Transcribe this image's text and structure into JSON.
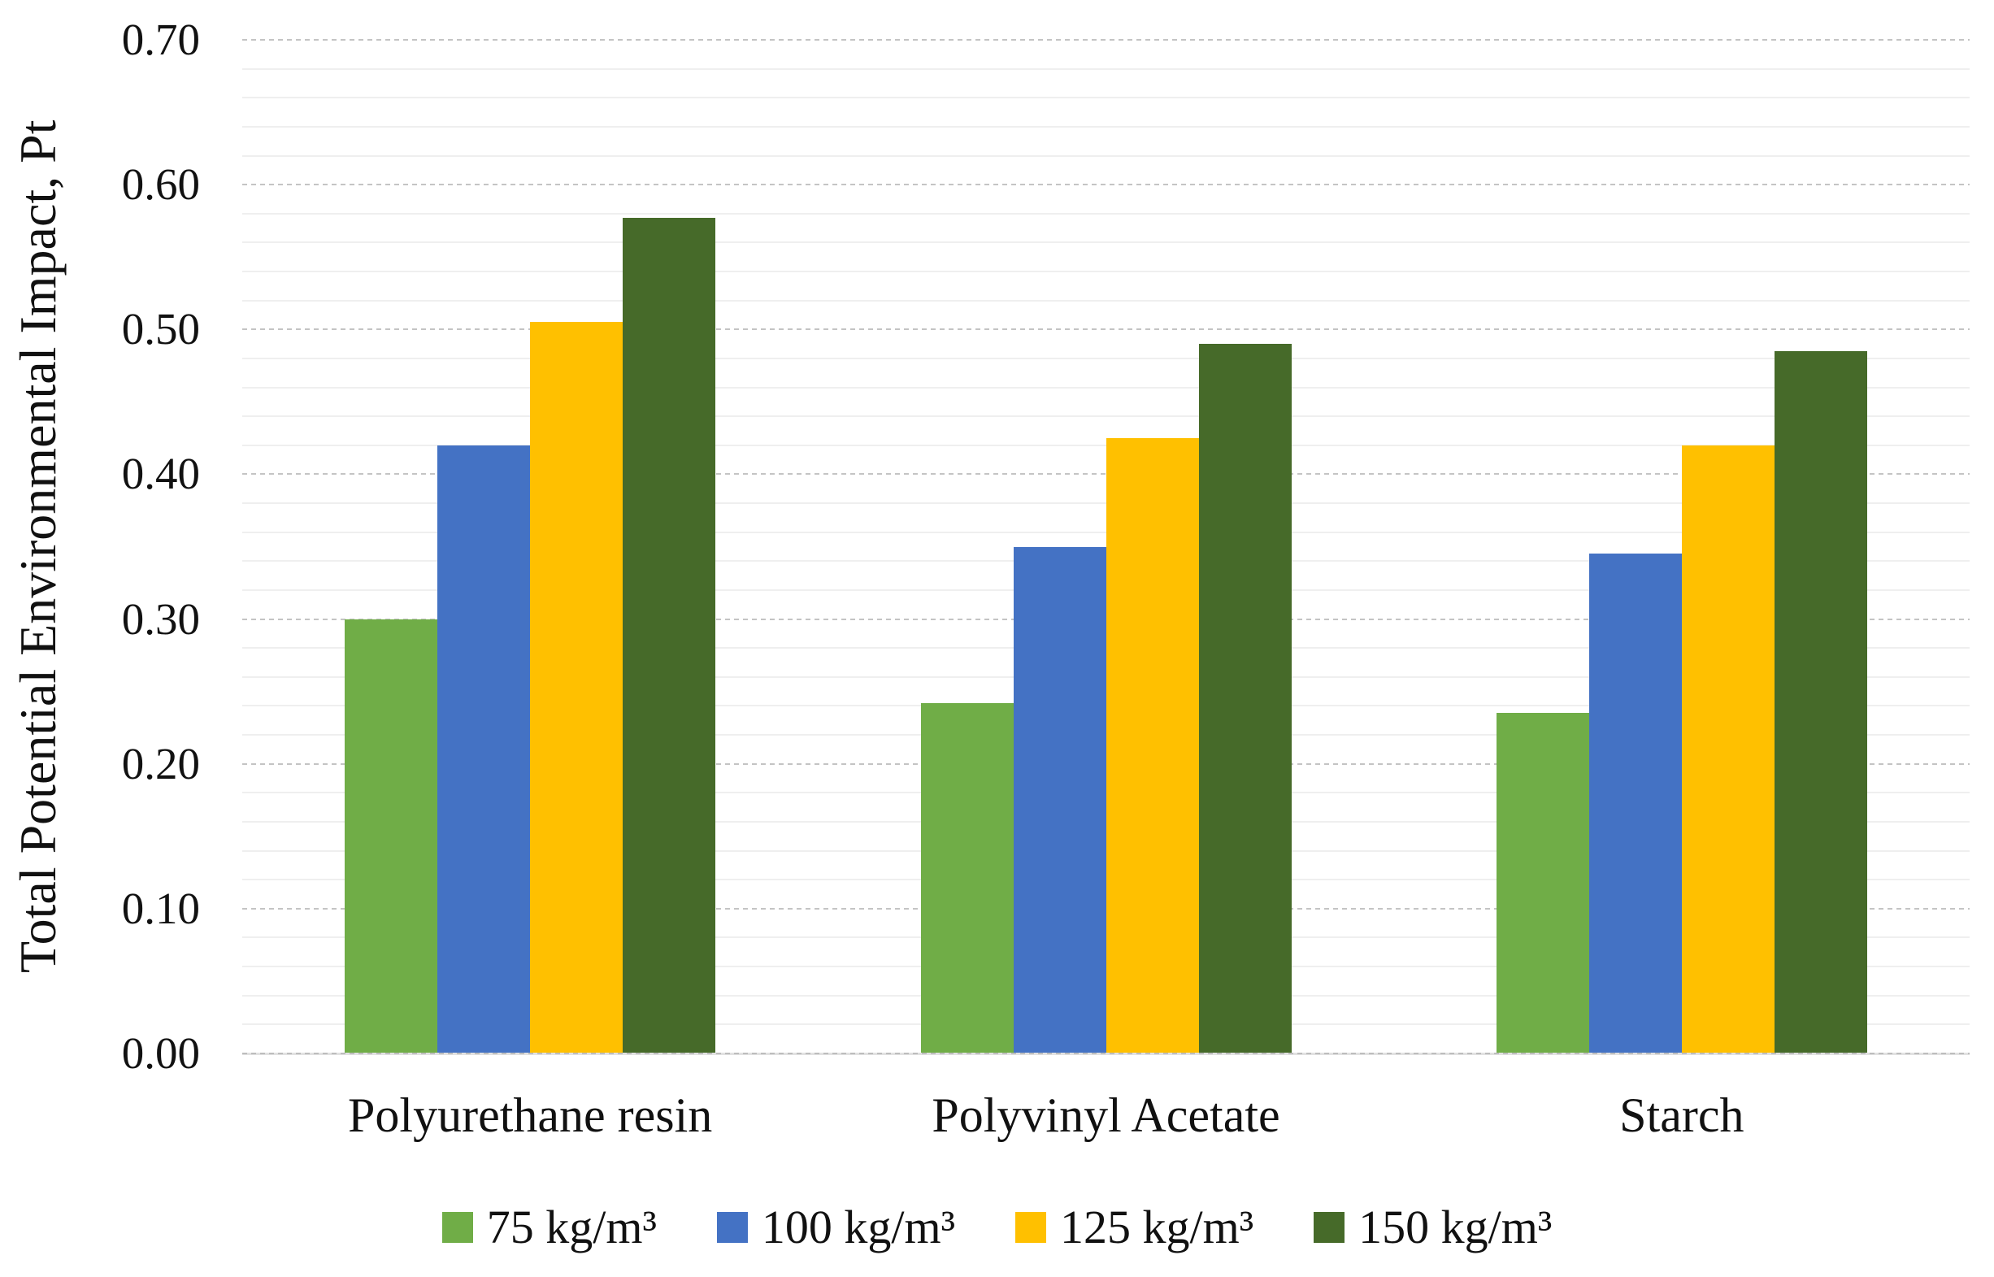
{
  "chart_data": {
    "type": "bar",
    "title": "",
    "xlabel": "",
    "ylabel": "Total Potential Environmental Impact, Pt",
    "categories": [
      "Polyurethane resin",
      "Polyvinyl Acetate",
      "Starch"
    ],
    "series": [
      {
        "name": "75 kg/m³",
        "color": "#70AD47",
        "values": [
          0.3,
          0.242,
          0.235
        ]
      },
      {
        "name": "100 kg/m³",
        "color": "#4472C4",
        "values": [
          0.42,
          0.35,
          0.345
        ]
      },
      {
        "name": "125 kg/m³",
        "color": "#FFC000",
        "values": [
          0.505,
          0.425,
          0.42
        ]
      },
      {
        "name": "150 kg/m³",
        "color": "#466A29",
        "values": [
          0.577,
          0.49,
          0.485
        ]
      }
    ],
    "ylim": [
      0.0,
      0.7
    ],
    "ytick_step": 0.1,
    "yminor_step": 0.02,
    "ytick_labels": [
      "0.00",
      "0.10",
      "0.20",
      "0.30",
      "0.40",
      "0.50",
      "0.60",
      "0.70"
    ],
    "grid": true,
    "gridline_minor_interval": 0.02,
    "gridline_major_interval": 0.1,
    "legend_position": "bottom"
  }
}
